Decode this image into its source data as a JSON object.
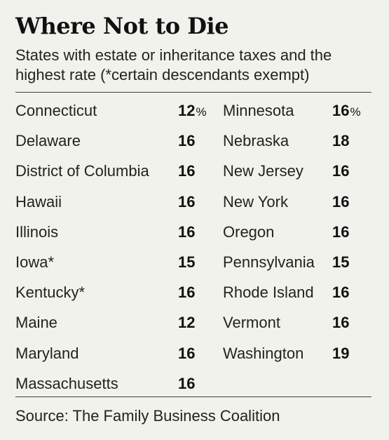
{
  "header": {
    "title": "Where Not to Die",
    "subtitle": "States with estate or inheritance taxes and the highest rate (*certain descendants exempt)"
  },
  "table": {
    "left": [
      {
        "state": "Connecticut",
        "rate": "12",
        "pct": "%"
      },
      {
        "state": "Delaware",
        "rate": "16"
      },
      {
        "state": "District of Columbia",
        "rate": "16"
      },
      {
        "state": "Hawaii",
        "rate": "16"
      },
      {
        "state": "Illinois",
        "rate": "16"
      },
      {
        "state": "Iowa*",
        "rate": "15"
      },
      {
        "state": "Kentucky*",
        "rate": "16"
      },
      {
        "state": "Maine",
        "rate": "12"
      },
      {
        "state": "Maryland",
        "rate": "16"
      },
      {
        "state": "Massachusetts",
        "rate": "16"
      }
    ],
    "right": [
      {
        "state": "Minnesota",
        "rate": "16",
        "pct": "%"
      },
      {
        "state": "Nebraska",
        "rate": "18"
      },
      {
        "state": "New Jersey",
        "rate": "16"
      },
      {
        "state": "New York",
        "rate": "16"
      },
      {
        "state": "Oregon",
        "rate": "16"
      },
      {
        "state": "Pennsylvania",
        "rate": "15"
      },
      {
        "state": "Rhode Island",
        "rate": "16"
      },
      {
        "state": "Vermont",
        "rate": "16"
      },
      {
        "state": "Washington",
        "rate": "19"
      }
    ]
  },
  "footer": {
    "source": "Source: The Family Business Coalition"
  },
  "colors": {
    "background": "#f2f2ec",
    "text": "#1f1f1f",
    "rule": "#444444"
  }
}
